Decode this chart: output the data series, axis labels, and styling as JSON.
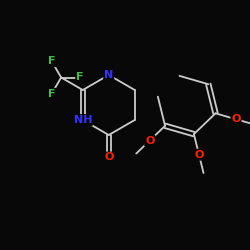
{
  "background_color": "#080808",
  "atom_color_C": "#d8d8d8",
  "atom_color_N": "#3333ff",
  "atom_color_O": "#ff2200",
  "atom_color_F": "#44bb44",
  "atom_color_H": "#d8d8d8",
  "bond_color": "#cccccc",
  "lw": 1.3,
  "font_size_atom": 8.0,
  "font_size_small": 6.5,
  "xlim": [
    0,
    10
  ],
  "ylim": [
    0,
    10
  ]
}
